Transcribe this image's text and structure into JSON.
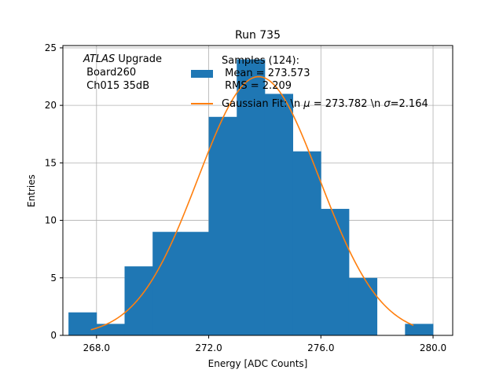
{
  "chart_data": {
    "type": "bar",
    "title": "Run 735",
    "xlabel": "Energy [ADC Counts]",
    "ylabel": "Entries",
    "xlim": [
      266.8,
      280.7
    ],
    "ylim": [
      0,
      25.2
    ],
    "grid": true,
    "xticks": [
      268,
      272,
      276,
      280
    ],
    "xtick_labels": [
      "268.0",
      "272.0",
      "276.0",
      "280.0"
    ],
    "yticks": [
      0,
      5,
      10,
      15,
      20,
      25
    ],
    "ytick_labels": [
      "0",
      "5",
      "10",
      "15",
      "20",
      "25"
    ],
    "bins": [
      {
        "lo": 267.0,
        "hi": 268.0,
        "count": 2
      },
      {
        "lo": 268.0,
        "hi": 269.0,
        "count": 1
      },
      {
        "lo": 269.0,
        "hi": 270.0,
        "count": 6
      },
      {
        "lo": 270.0,
        "hi": 271.0,
        "count": 9
      },
      {
        "lo": 271.0,
        "hi": 272.0,
        "count": 9
      },
      {
        "lo": 272.0,
        "hi": 273.0,
        "count": 19
      },
      {
        "lo": 273.0,
        "hi": 274.0,
        "count": 24
      },
      {
        "lo": 274.0,
        "hi": 275.0,
        "count": 21
      },
      {
        "lo": 275.0,
        "hi": 276.0,
        "count": 16
      },
      {
        "lo": 276.0,
        "hi": 277.0,
        "count": 11
      },
      {
        "lo": 277.0,
        "hi": 278.0,
        "count": 5
      },
      {
        "lo": 278.0,
        "hi": 279.0,
        "count": 0
      },
      {
        "lo": 279.0,
        "hi": 280.0,
        "count": 1
      }
    ],
    "fit": {
      "type": "gaussian",
      "mu": 273.782,
      "sigma": 2.164,
      "peak": 22.5,
      "x_range": [
        267.8,
        279.3
      ]
    },
    "colors": {
      "bars": "#1f77b4",
      "fit": "#ff7f0e",
      "grid": "#b0b0b0"
    },
    "legend": {
      "position": "top-right",
      "entries": [
        {
          "label": "Samples (124):\n Mean = 273.573\n RMS = 2.209",
          "kind": "bar"
        },
        {
          "label": "Gaussian Fit: \\n $\\mu$ = 273.782 \\n $\\sigma$=2.164",
          "kind": "line"
        }
      ],
      "samples_lines": [
        "Samples (124):",
        " Mean = 273.573",
        " RMS = 2.209"
      ],
      "fit_prefix": "Gaussian Fit: \\n ",
      "fit_mu_symbol": "μ",
      "fit_mid": " = 273.782 \\n ",
      "fit_sigma_symbol": "σ",
      "fit_suffix": "=2.164"
    },
    "annotation": {
      "experiment": "ATLAS",
      "experiment_suffix": " Upgrade",
      "board": " Board260",
      "channel": " Ch015 35dB"
    }
  }
}
